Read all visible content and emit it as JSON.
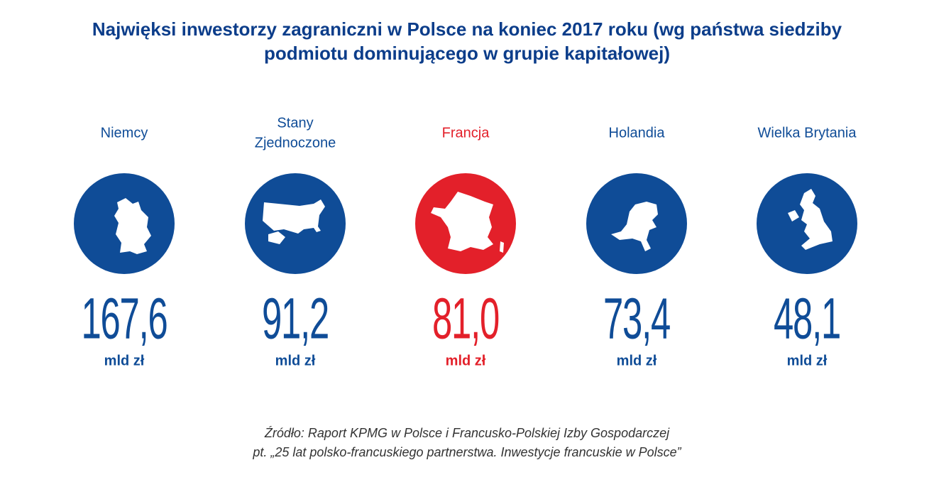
{
  "title": {
    "lines": [
      "Najwięksi inwestorzy zagraniczni w Polsce na koniec 2017 roku (wg państwa siedziby",
      "podmiotu dominującego w grupie kapitałowej)"
    ]
  },
  "countries": [
    {
      "name_lines": [
        "Niemcy"
      ],
      "value": "167,6",
      "unit": "mld zł",
      "color": "#0f4c97"
    },
    {
      "name_lines": [
        "Stany",
        "Zjednoczone"
      ],
      "value": "91,2",
      "unit": "mld zł",
      "color": "#0f4c97"
    },
    {
      "name_lines": [
        "Francja"
      ],
      "value": "81,0",
      "unit": "mld zł",
      "color": "#e3202a"
    },
    {
      "name_lines": [
        "Holandia"
      ],
      "value": "73,4",
      "unit": "mld zł",
      "color": "#0f4c97"
    },
    {
      "name_lines": [
        "Wielka Brytania"
      ],
      "value": "48,1",
      "unit": "mld zł",
      "color": "#0f4c97"
    }
  ],
  "source": {
    "lines": [
      "Źródło: Raport KPMG w Polsce i Francusko-Polskiej Izby Gospodarczej",
      "pt. „25 lat polsko-francuskiego partnerstwa. Inwestycje francuskie w Polsce”"
    ]
  }
}
